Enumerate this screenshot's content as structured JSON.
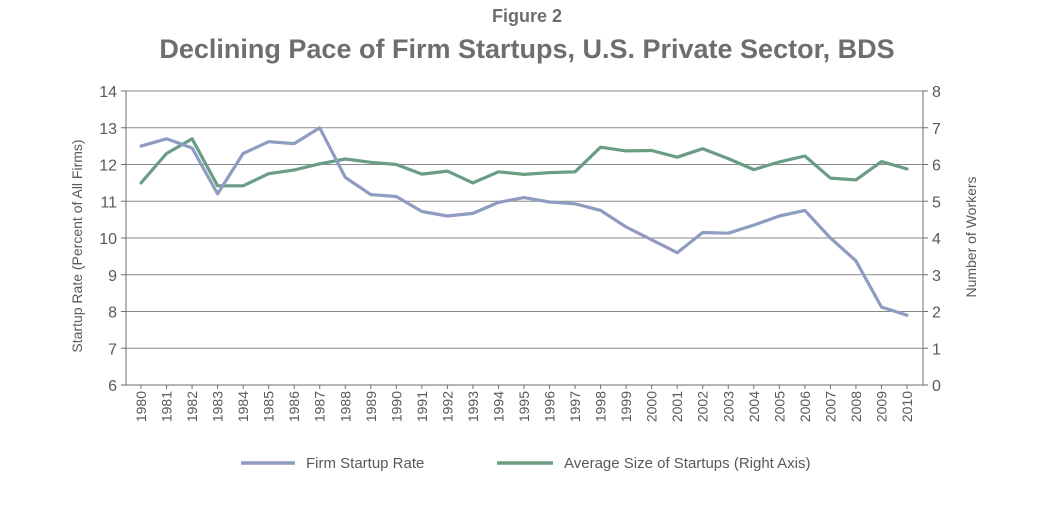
{
  "figure_label": "Figure 2",
  "chart_data": {
    "type": "line",
    "title": "Declining Pace of Firm Startups, U.S. Private Sector, BDS",
    "x": [
      "1980",
      "1981",
      "1982",
      "1983",
      "1984",
      "1985",
      "1986",
      "1987",
      "1988",
      "1989",
      "1990",
      "1991",
      "1992",
      "1993",
      "1994",
      "1995",
      "1996",
      "1997",
      "1998",
      "1999",
      "2000",
      "2001",
      "2002",
      "2003",
      "2004",
      "2005",
      "2006",
      "2007",
      "2008",
      "2009",
      "2010"
    ],
    "ylabel_left": "Startup Rate (Percent of All Firms)",
    "ylabel_right": "Number of Workers",
    "ylim_left": [
      6,
      14
    ],
    "ylim_right": [
      0,
      8
    ],
    "yticks_left": [
      "6",
      "7",
      "8",
      "9",
      "10",
      "11",
      "12",
      "13",
      "14"
    ],
    "yticks_right": [
      "0",
      "1",
      "2",
      "3",
      "4",
      "5",
      "6",
      "7",
      "8"
    ],
    "grid": true,
    "legend_position": "bottom",
    "series": [
      {
        "name": "Firm Startup Rate",
        "axis": "left",
        "color": "#8e9cc1",
        "values": [
          12.5,
          12.7,
          12.45,
          11.2,
          12.3,
          12.62,
          12.57,
          13.0,
          11.65,
          11.18,
          11.13,
          10.72,
          10.6,
          10.67,
          10.97,
          11.1,
          10.98,
          10.93,
          10.75,
          10.3,
          9.95,
          9.6,
          10.15,
          10.13,
          10.35,
          10.6,
          10.75,
          10.0,
          9.38,
          8.12,
          7.9
        ]
      },
      {
        "name": "Average Size of Startups (Right Axis)",
        "axis": "right",
        "color": "#6a9d84",
        "values": [
          5.5,
          6.3,
          6.7,
          5.42,
          5.42,
          5.75,
          5.85,
          6.02,
          6.15,
          6.06,
          6.0,
          5.74,
          5.82,
          5.5,
          5.8,
          5.73,
          5.78,
          5.8,
          6.47,
          6.37,
          6.38,
          6.2,
          6.43,
          6.16,
          5.86,
          6.07,
          6.23,
          5.63,
          5.58,
          6.08,
          5.88
        ]
      }
    ]
  }
}
